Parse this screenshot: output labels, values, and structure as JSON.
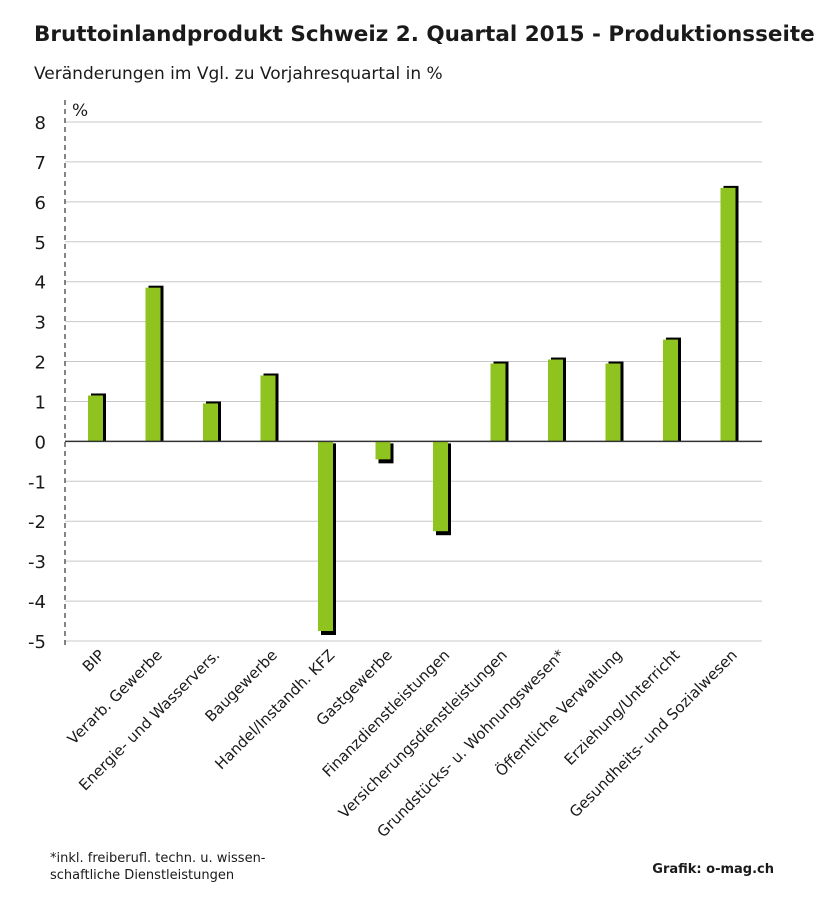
{
  "chart_data": {
    "type": "bar",
    "title": "Bruttoinlandprodukt Schweiz 2. Quartal 2015 - Produktionsseite",
    "subtitle": "Veränderungen im Vgl. zu Vorjahresquartal in %",
    "ylabel": "%",
    "ylim": [
      -5,
      8
    ],
    "yticks": [
      "8",
      "7",
      "6",
      "5",
      "4",
      "3",
      "2",
      "1",
      "0",
      "-1",
      "-2",
      "-3",
      "-4",
      "-5"
    ],
    "grid": true,
    "categories": [
      "BIP",
      "Verarb. Gewerbe",
      "Energie- und Wasservers.",
      "Baugewerbe",
      "Handel/Instandh. KFZ",
      "Gastgewerbe",
      "Finanzdienstleistungen",
      "Versicherungsdienstleistungen",
      "Grundstücks- u. Wohnungswesen*",
      "Öffentliche Verwaltung",
      "Erziehung/Unterricht",
      "Gesundheits- und Sozialwesen"
    ],
    "values": [
      1.2,
      3.9,
      1.0,
      1.7,
      -4.8,
      -0.5,
      -2.3,
      2.0,
      2.1,
      2.0,
      2.6,
      6.4
    ],
    "bar_color": "#8fc31f",
    "shadow_color": "#000000"
  },
  "footnote": {
    "line1": "*inkl. freiberufl. techn. u. wissen-",
    "line2": "schaftliche Dienstleistungen"
  },
  "credit": "Grafik: o-mag.ch"
}
